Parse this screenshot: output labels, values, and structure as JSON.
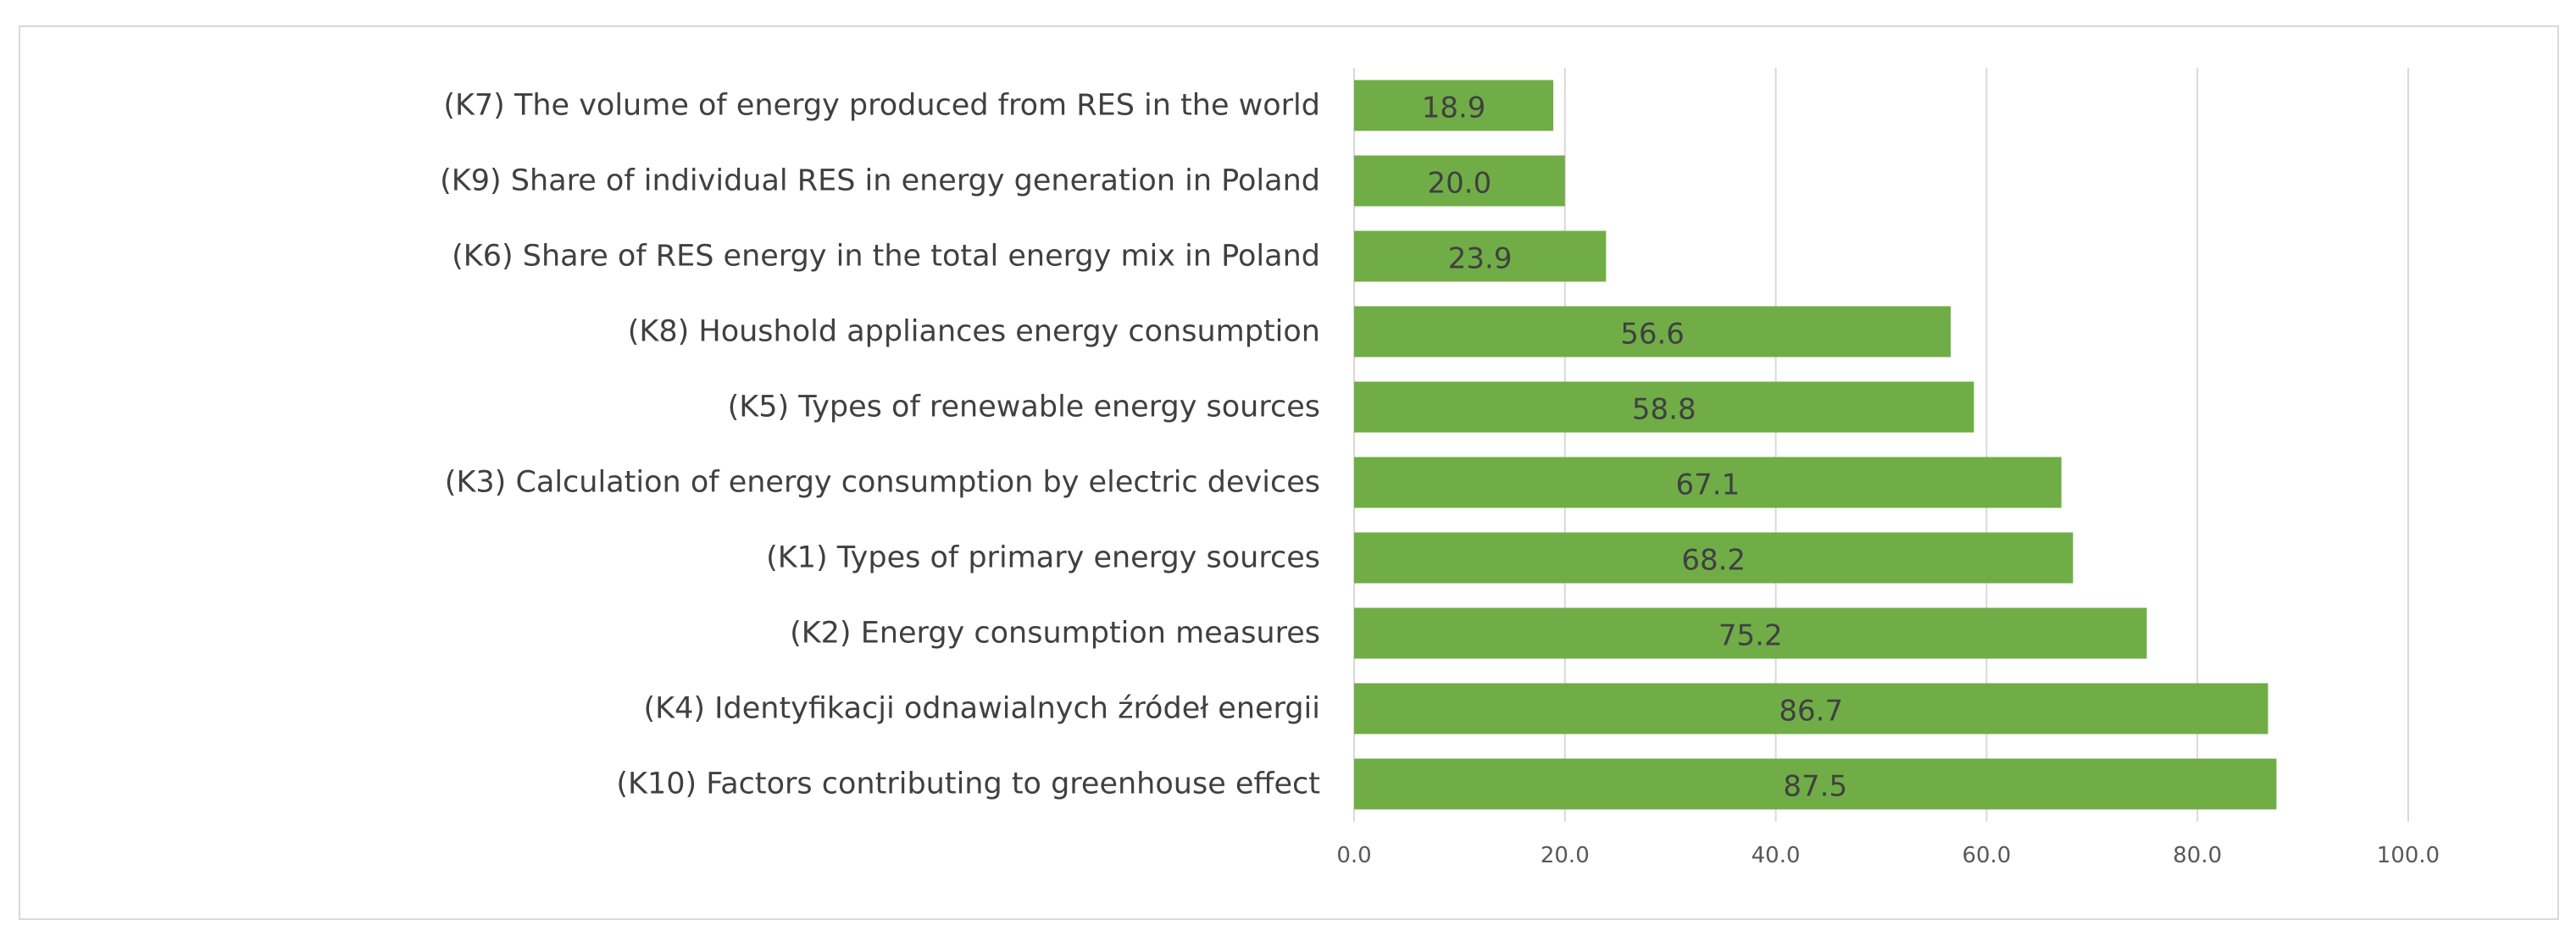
{
  "chart_data": {
    "type": "bar",
    "orientation": "horizontal",
    "categories": [
      "(K7) The volume of energy produced from RES in the world",
      "(K9) Share of individual RES in energy generation in Poland",
      "(K6) Share of RES energy in the total energy mix in Poland",
      "(K8) Houshold appliances energy consumption",
      "(K5) Types of renewable energy sources",
      "(K3) Calculation of energy consumption by electric devices",
      "(K1) Types of primary energy sources",
      "(K2) Energy consumption measures",
      "(K4) Identyfikacji odnawialnych źródeł energii",
      "(K10) Factors contributing to greenhouse effect"
    ],
    "values": [
      18.9,
      20.0,
      23.9,
      56.6,
      58.8,
      67.1,
      68.2,
      75.2,
      86.7,
      87.5
    ],
    "data_labels": [
      "18.9",
      "20.0",
      "23.9",
      "56.6",
      "58.8",
      "67.1",
      "68.2",
      "75.2",
      "86.7",
      "87.5"
    ],
    "xlim": [
      0,
      100
    ],
    "xticks": [
      0,
      20,
      40,
      60,
      80,
      100
    ],
    "xtick_labels": [
      "0.0",
      "20.0",
      "40.0",
      "60.0",
      "80.0",
      "100.0"
    ],
    "grid": "vertical",
    "legend": "none",
    "title": "",
    "xlabel": "",
    "ylabel": "",
    "bar_color": "#70ad47",
    "grid_color": "#d9d9d9",
    "text_color": "#404040"
  }
}
